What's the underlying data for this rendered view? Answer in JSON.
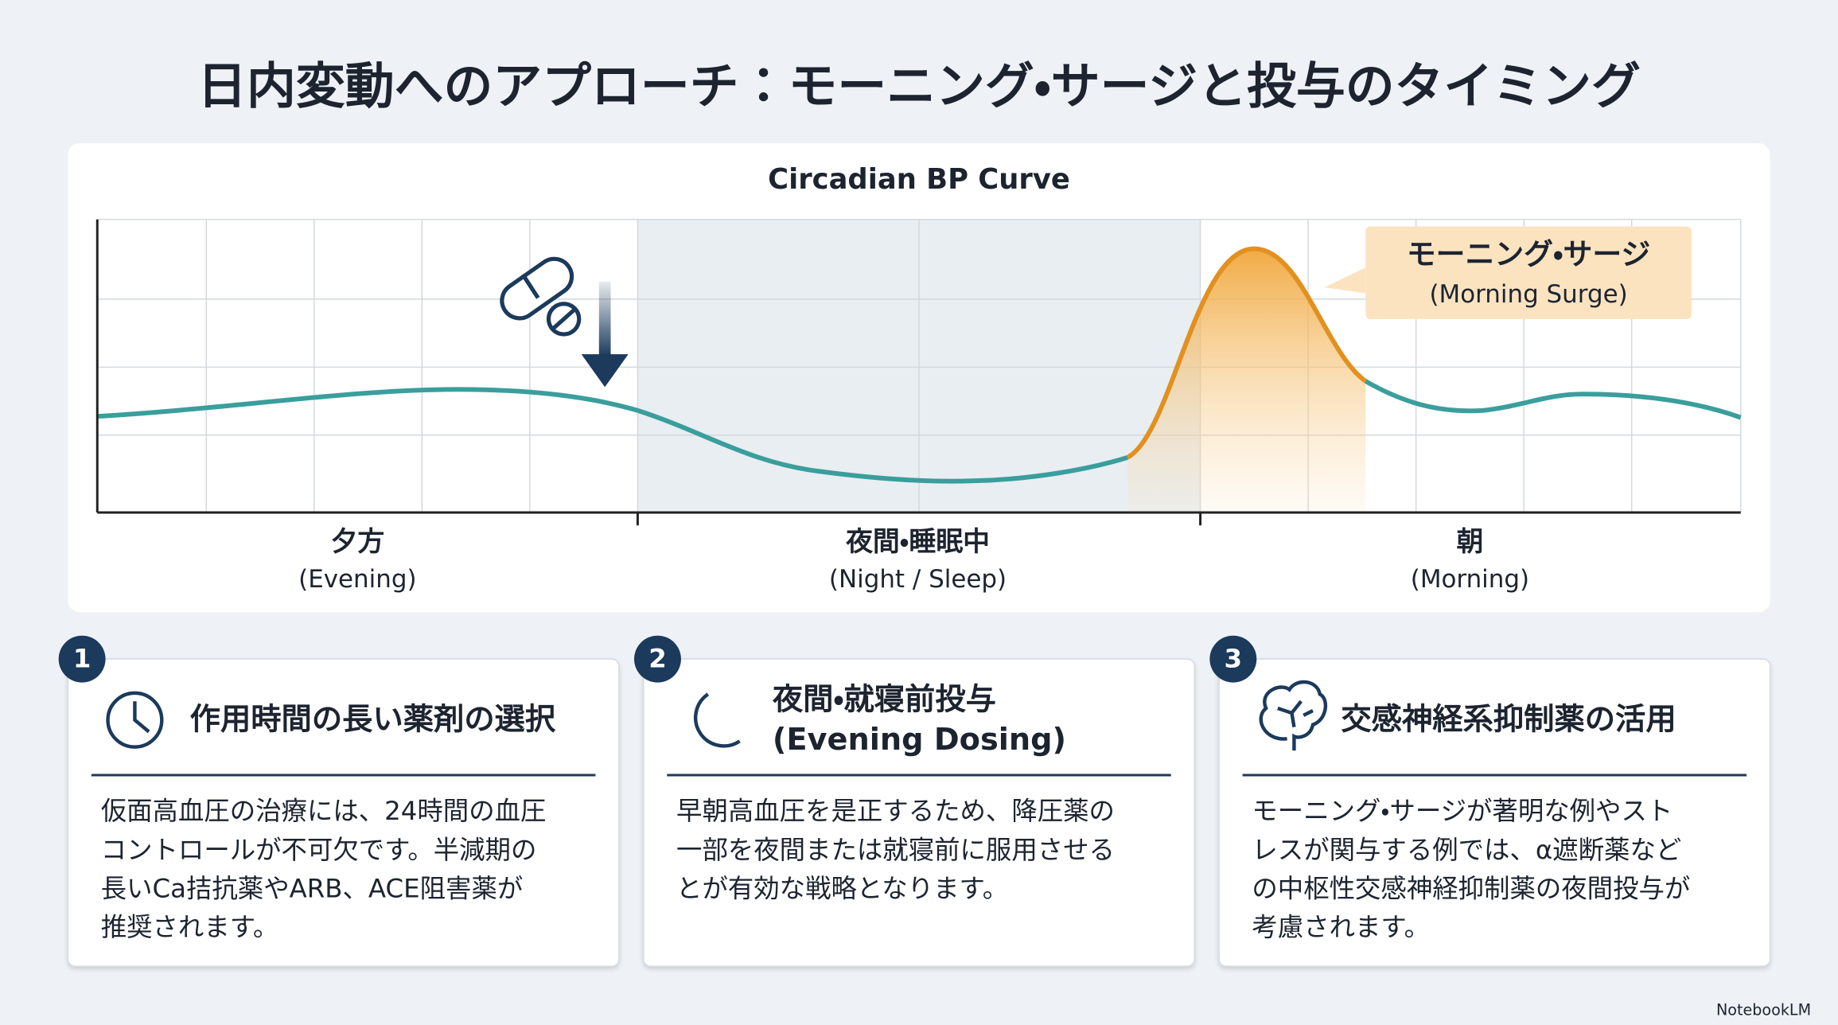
{
  "title": "日内変動へのアプローチ：モーニング・サージと投与のタイミング",
  "chart": {
    "title": "Circadian BP Curve",
    "periods": [
      {
        "label": "夕方",
        "sublabel": "(Evening)"
      },
      {
        "label": "夜間・睡眠中",
        "sublabel": "(Night / Sleep)"
      },
      {
        "label": "朝",
        "sublabel": "(Morning)"
      }
    ],
    "callout": {
      "label": "モーニング・サージ",
      "sublabel": "(Morning Surge)"
    }
  },
  "cards": [
    {
      "number": "1",
      "heading": [
        "作用時間の長い薬剤の選択"
      ],
      "body": [
        "仮面高血圧の治療には、24時間の血圧",
        "コントロールが不可欠です。半減期の",
        "長いCa拮抗薬やARB、ACE阻害薬が",
        "推奨されます。"
      ]
    },
    {
      "number": "2",
      "heading": [
        "夜間・就寝前投与",
        "(Evening Dosing)"
      ],
      "body": [
        "早朝高血圧を是正するため、降圧薬の",
        "一部を夜間または就寝前に服用させる",
        "とが有効な戦略となります。"
      ]
    },
    {
      "number": "3",
      "heading": [
        "交感神経系抑制薬の活用"
      ],
      "body": [
        "モーニング・サージが著明な例やスト",
        "レスが関与する例では、α遮断薬など",
        "の中枢性交感神経抑制薬の夜間投与が",
        "考慮されます。"
      ]
    }
  ],
  "footer": "NotebookLM"
}
